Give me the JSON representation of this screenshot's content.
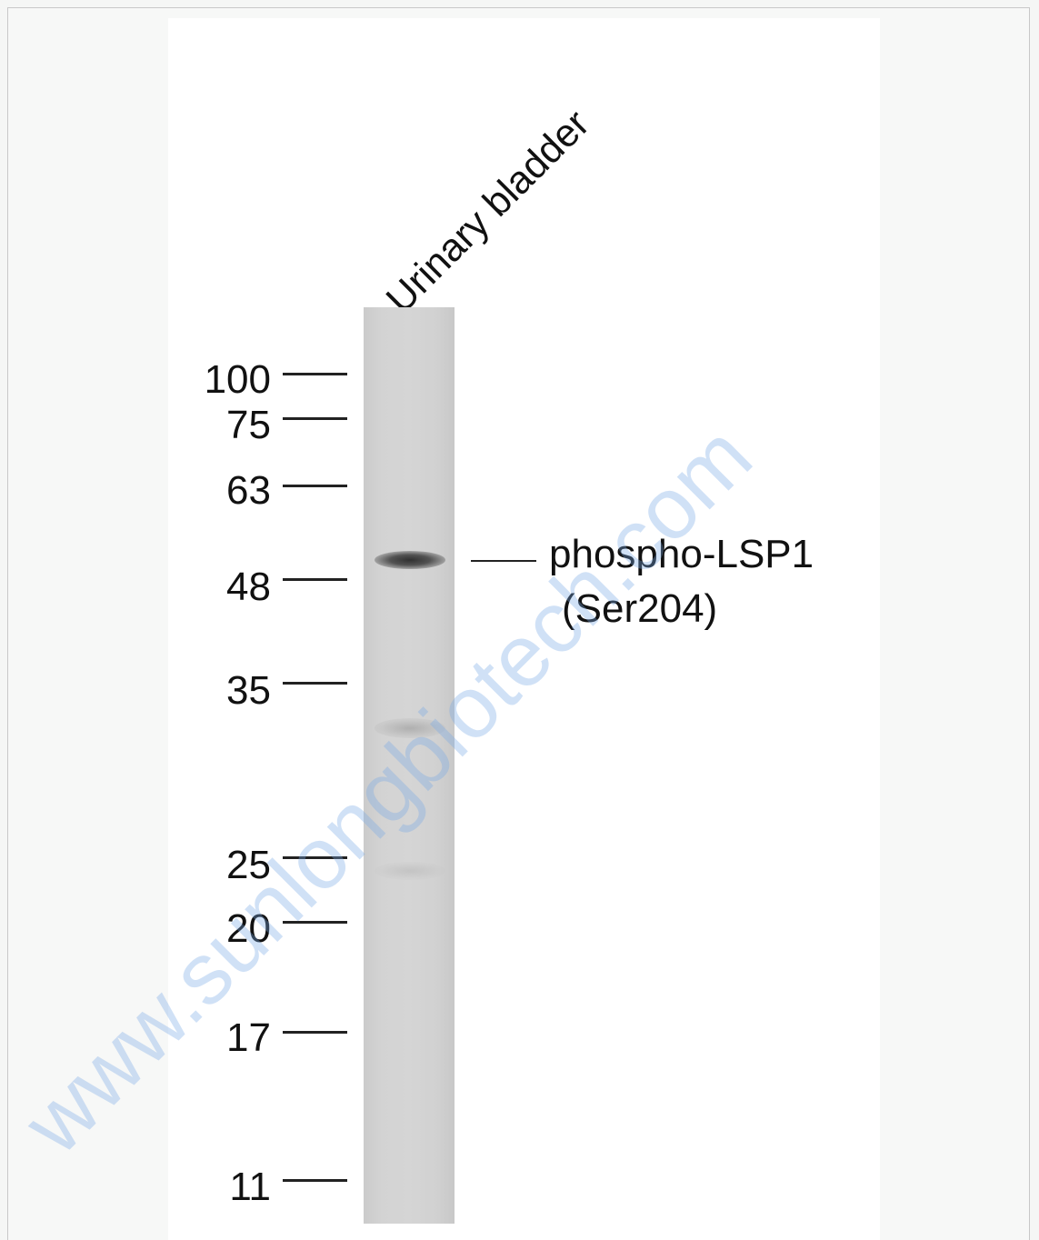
{
  "lane": {
    "label": "Urinary bladder"
  },
  "markers": [
    {
      "label": "100",
      "kda": 100
    },
    {
      "label": "75",
      "kda": 75
    },
    {
      "label": "63",
      "kda": 63
    },
    {
      "label": "48",
      "kda": 48
    },
    {
      "label": "35",
      "kda": 35
    },
    {
      "label": "25",
      "kda": 25
    },
    {
      "label": "20",
      "kda": 20
    },
    {
      "label": "17",
      "kda": 17
    },
    {
      "label": "11",
      "kda": 11
    }
  ],
  "target": {
    "line1": "phospho-LSP1",
    "line2": "(Ser204)"
  },
  "watermark": "www.sunlongbiotech.com"
}
